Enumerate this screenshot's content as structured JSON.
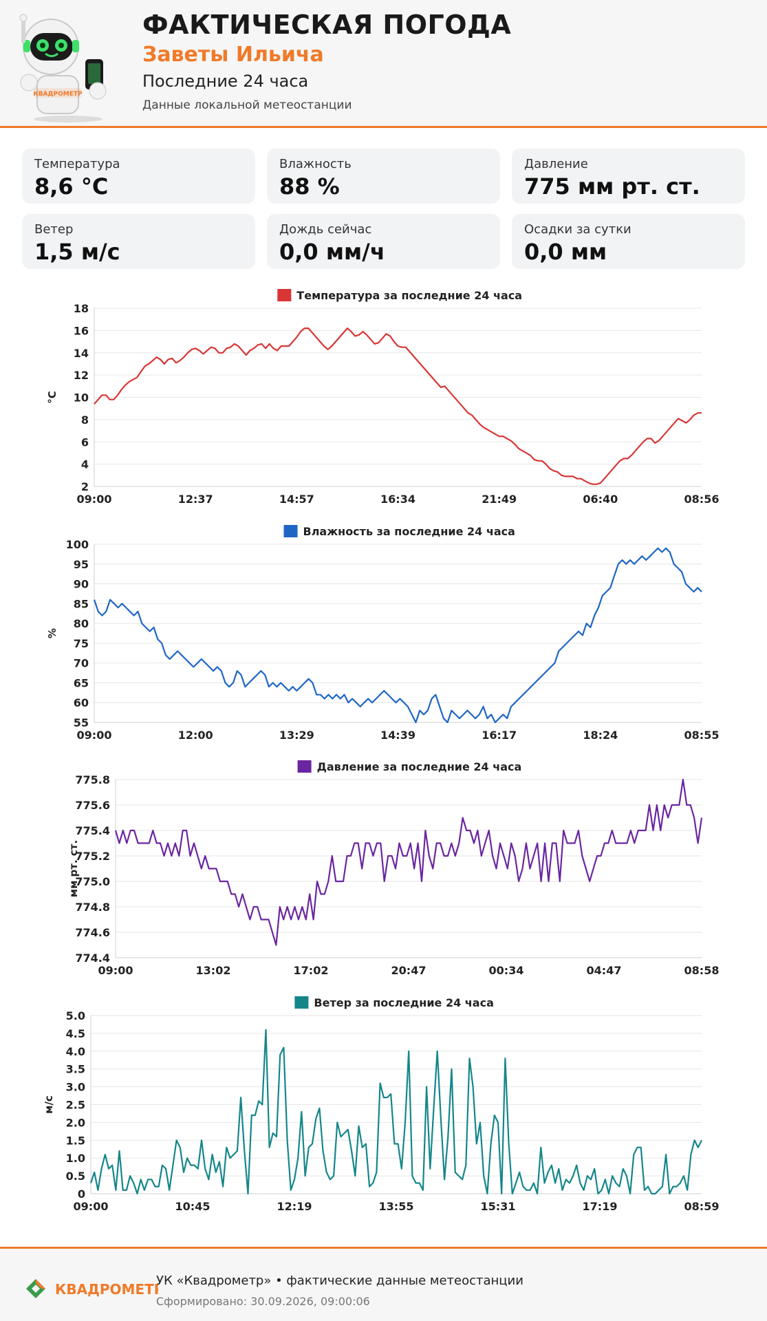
{
  "header": {
    "title": "ФАКТИЧЕСКАЯ ПОГОДА",
    "location": "Заветы Ильича",
    "period": "Последние 24 часа",
    "source": "Данные локальной метеостанции",
    "mascot_brand": "КВАДРОМЕТР"
  },
  "cards": [
    {
      "label": "Температура",
      "value": "8,6 °C"
    },
    {
      "label": "Влажность",
      "value": "88 %"
    },
    {
      "label": "Давление",
      "value": "775 мм рт. ст."
    },
    {
      "label": "Ветер",
      "value": "1,5 м/с"
    },
    {
      "label": "Дождь сейчас",
      "value": "0,0 мм/ч"
    },
    {
      "label": "Осадки за сутки",
      "value": "0,0 мм"
    }
  ],
  "colors": {
    "accent": "#f07a2a",
    "temperature": "#d93535",
    "humidity": "#1e66c4",
    "pressure": "#6a25a0",
    "wind": "#14868a"
  },
  "chart_data": [
    {
      "type": "line",
      "title": "Температура за последние 24 часа",
      "ylabel": "°C",
      "ylim": [
        2,
        18
      ],
      "yticks": [
        "2",
        "4",
        "6",
        "8",
        "10",
        "12",
        "14",
        "16",
        "18"
      ],
      "xticks": [
        "09:00",
        "12:37",
        "14:57",
        "16:34",
        "21:49",
        "06:40",
        "08:56"
      ],
      "grid": true,
      "legend": "top-center",
      "series": [
        {
          "color": "#d93535",
          "values": [
            9.4,
            9.8,
            10.2,
            10.2,
            9.8,
            9.8,
            10.2,
            10.7,
            11.1,
            11.4,
            11.6,
            11.8,
            12.3,
            12.8,
            13.0,
            13.3,
            13.6,
            13.4,
            13.0,
            13.4,
            13.5,
            13.1,
            13.3,
            13.6,
            14.0,
            14.3,
            14.4,
            14.2,
            13.9,
            14.2,
            14.5,
            14.4,
            14.0,
            14.0,
            14.4,
            14.5,
            14.8,
            14.6,
            14.2,
            13.8,
            14.2,
            14.4,
            14.7,
            14.8,
            14.4,
            14.8,
            14.4,
            14.2,
            14.6,
            14.6,
            14.6,
            15.0,
            15.4,
            15.9,
            16.2,
            16.2,
            15.8,
            15.4,
            15.0,
            14.6,
            14.3,
            14.6,
            15.0,
            15.4,
            15.8,
            16.2,
            15.9,
            15.5,
            15.6,
            15.9,
            15.6,
            15.2,
            14.8,
            14.9,
            15.3,
            15.7,
            15.5,
            15.0,
            14.6,
            14.5,
            14.5,
            14.1,
            13.7,
            13.3,
            12.9,
            12.5,
            12.1,
            11.7,
            11.3,
            10.9,
            11.0,
            10.6,
            10.2,
            9.8,
            9.4,
            9.0,
            8.6,
            8.4,
            8.0,
            7.6,
            7.3,
            7.1,
            6.9,
            6.7,
            6.5,
            6.5,
            6.3,
            6.1,
            5.8,
            5.4,
            5.2,
            5.0,
            4.8,
            4.4,
            4.3,
            4.3,
            4.0,
            3.6,
            3.4,
            3.3,
            3.0,
            2.9,
            2.9,
            2.9,
            2.7,
            2.7,
            2.5,
            2.3,
            2.2,
            2.2,
            2.3,
            2.7,
            3.1,
            3.5,
            3.9,
            4.3,
            4.5,
            4.5,
            4.8,
            5.2,
            5.6,
            6.0,
            6.3,
            6.3,
            5.9,
            6.1,
            6.5,
            6.9,
            7.3,
            7.7,
            8.1,
            7.9,
            7.7,
            8.0,
            8.4,
            8.6,
            8.6
          ]
        }
      ]
    },
    {
      "type": "line",
      "title": "Влажность за последние 24 часа",
      "ylabel": "%",
      "ylim": [
        55,
        100
      ],
      "yticks": [
        "55",
        "60",
        "65",
        "70",
        "75",
        "80",
        "85",
        "90",
        "95",
        "100"
      ],
      "xticks": [
        "09:00",
        "12:00",
        "13:29",
        "14:39",
        "16:17",
        "18:24",
        "08:55"
      ],
      "grid": true,
      "legend": "top-center",
      "series": [
        {
          "color": "#1e66c4",
          "values": [
            86,
            83,
            82,
            83,
            86,
            85,
            84,
            85,
            84,
            83,
            82,
            83,
            80,
            79,
            78,
            79,
            76,
            75,
            72,
            71,
            72,
            73,
            72,
            71,
            70,
            69,
            70,
            71,
            70,
            69,
            68,
            69,
            68,
            65,
            64,
            65,
            68,
            67,
            64,
            65,
            66,
            67,
            68,
            67,
            64,
            65,
            64,
            65,
            64,
            63,
            64,
            63,
            64,
            65,
            66,
            65,
            62,
            62,
            61,
            62,
            61,
            62,
            61,
            62,
            60,
            61,
            60,
            59,
            60,
            61,
            60,
            61,
            62,
            63,
            62,
            61,
            60,
            61,
            60,
            59,
            57,
            55,
            58,
            57,
            58,
            61,
            62,
            59,
            56,
            55,
            58,
            57,
            56,
            57,
            58,
            57,
            56,
            57,
            59,
            56,
            57,
            55,
            56,
            57,
            56,
            59,
            60,
            61,
            62,
            63,
            64,
            65,
            66,
            67,
            68,
            69,
            70,
            73,
            74,
            75,
            76,
            77,
            78,
            77,
            80,
            79,
            82,
            84,
            87,
            88,
            89,
            92,
            95,
            96,
            95,
            96,
            95,
            96,
            97,
            96,
            97,
            98,
            99,
            98,
            99,
            98,
            95,
            94,
            93,
            90,
            89,
            88,
            89,
            88
          ]
        }
      ]
    },
    {
      "type": "line",
      "title": "Давление за последние 24 часа",
      "ylabel": "мм рт. ст.",
      "ylim": [
        774.4,
        775.8
      ],
      "yticks": [
        "774.4",
        "774.6",
        "774.8",
        "775.0",
        "775.2",
        "775.4",
        "775.6",
        "775.8"
      ],
      "xticks": [
        "09:00",
        "13:02",
        "17:02",
        "20:47",
        "00:34",
        "04:47",
        "08:58"
      ],
      "grid": true,
      "legend": "top-center",
      "series": [
        {
          "color": "#6a25a0",
          "values": [
            775.4,
            775.3,
            775.4,
            775.3,
            775.4,
            775.4,
            775.3,
            775.3,
            775.3,
            775.3,
            775.4,
            775.3,
            775.3,
            775.2,
            775.3,
            775.2,
            775.3,
            775.2,
            775.4,
            775.4,
            775.2,
            775.3,
            775.2,
            775.1,
            775.2,
            775.1,
            775.1,
            775.1,
            775.0,
            775.0,
            775.0,
            774.9,
            774.9,
            774.8,
            774.9,
            774.8,
            774.7,
            774.8,
            774.8,
            774.7,
            774.7,
            774.7,
            774.6,
            774.5,
            774.8,
            774.7,
            774.8,
            774.7,
            774.8,
            774.7,
            774.8,
            774.7,
            774.9,
            774.7,
            775.0,
            774.9,
            774.9,
            775.0,
            775.2,
            775.0,
            775.0,
            775.0,
            775.2,
            775.2,
            775.3,
            775.3,
            775.1,
            775.3,
            775.3,
            775.2,
            775.3,
            775.3,
            775.0,
            775.2,
            775.2,
            775.1,
            775.3,
            775.2,
            775.2,
            775.3,
            775.1,
            775.3,
            775.0,
            775.4,
            775.2,
            775.1,
            775.3,
            775.3,
            775.2,
            775.2,
            775.3,
            775.2,
            775.3,
            775.5,
            775.4,
            775.4,
            775.3,
            775.4,
            775.2,
            775.3,
            775.4,
            775.2,
            775.1,
            775.3,
            775.2,
            775.1,
            775.3,
            775.2,
            775.0,
            775.1,
            775.3,
            775.1,
            775.2,
            775.3,
            775.0,
            775.3,
            775.0,
            775.3,
            775.3,
            775.0,
            775.4,
            775.3,
            775.3,
            775.3,
            775.4,
            775.2,
            775.1,
            775.0,
            775.1,
            775.2,
            775.2,
            775.3,
            775.3,
            775.4,
            775.3,
            775.3,
            775.3,
            775.3,
            775.4,
            775.3,
            775.4,
            775.4,
            775.4,
            775.6,
            775.4,
            775.6,
            775.4,
            775.6,
            775.5,
            775.6,
            775.6,
            775.6,
            775.8,
            775.6,
            775.6,
            775.5,
            775.3,
            775.5
          ]
        }
      ]
    },
    {
      "type": "line",
      "title": "Ветер за последние 24 часа",
      "ylabel": "м/с",
      "ylim": [
        0,
        5
      ],
      "yticks": [
        "0",
        "0.5",
        "1.0",
        "1.5",
        "2.0",
        "2.5",
        "3.0",
        "3.5",
        "4.0",
        "4.5",
        "5.0"
      ],
      "xticks": [
        "09:00",
        "10:45",
        "12:19",
        "13:55",
        "15:31",
        "17:19",
        "08:59"
      ],
      "grid": true,
      "legend": "top-center",
      "series": [
        {
          "color": "#14868a",
          "values": [
            0.3,
            0.6,
            0.1,
            0.7,
            1.1,
            0.7,
            0.8,
            0.1,
            1.2,
            0.1,
            0.1,
            0.5,
            0.3,
            0.0,
            0.4,
            0.1,
            0.4,
            0.4,
            0.2,
            0.2,
            0.8,
            0.7,
            0.1,
            0.8,
            1.5,
            1.3,
            0.6,
            1.0,
            0.8,
            0.8,
            0.7,
            1.5,
            0.7,
            0.4,
            1.1,
            0.6,
            0.9,
            0.2,
            1.3,
            1.0,
            1.1,
            1.2,
            2.7,
            1.2,
            0.0,
            2.2,
            2.2,
            2.6,
            2.5,
            4.6,
            1.3,
            1.7,
            1.6,
            3.9,
            4.1,
            1.5,
            0.1,
            0.4,
            1.0,
            2.3,
            0.5,
            1.3,
            1.4,
            2.1,
            2.4,
            1.2,
            0.6,
            0.4,
            0.5,
            2.0,
            1.6,
            1.7,
            1.8,
            1.2,
            0.5,
            1.9,
            1.3,
            1.4,
            0.2,
            0.3,
            0.6,
            3.1,
            2.7,
            2.7,
            2.8,
            1.4,
            1.4,
            0.7,
            2.0,
            4.0,
            0.5,
            0.3,
            0.3,
            0.1,
            3.0,
            0.7,
            2.4,
            4.0,
            2.1,
            0.4,
            1.6,
            3.5,
            0.6,
            0.5,
            0.4,
            0.8,
            3.8,
            3.0,
            1.4,
            2.0,
            0.5,
            0.0,
            1.4,
            2.2,
            2.0,
            0.0,
            3.8,
            1.4,
            0.0,
            0.3,
            0.6,
            0.2,
            0.1,
            0.1,
            0.3,
            0.0,
            1.3,
            0.3,
            0.6,
            0.8,
            0.3,
            0.7,
            0.1,
            0.4,
            0.3,
            0.5,
            0.8,
            0.3,
            0.1,
            0.5,
            0.4,
            0.7,
            0.0,
            0.1,
            0.4,
            0.0,
            0.5,
            0.3,
            0.2,
            0.7,
            0.5,
            0.0,
            1.1,
            1.3,
            1.3,
            0.1,
            0.2,
            0.0,
            0.0,
            0.1,
            0.2,
            1.1,
            0.0,
            0.2,
            0.2,
            0.3,
            0.5,
            0.1,
            1.1,
            1.5,
            1.3,
            1.5
          ]
        }
      ]
    }
  ],
  "footer": {
    "logo_text": "КВАДРОМЕТР",
    "main": "УК «Квадрометр» • фактические данные метеостанции",
    "generated": "Сформировано: 30.09.2026, 09:00:06"
  }
}
